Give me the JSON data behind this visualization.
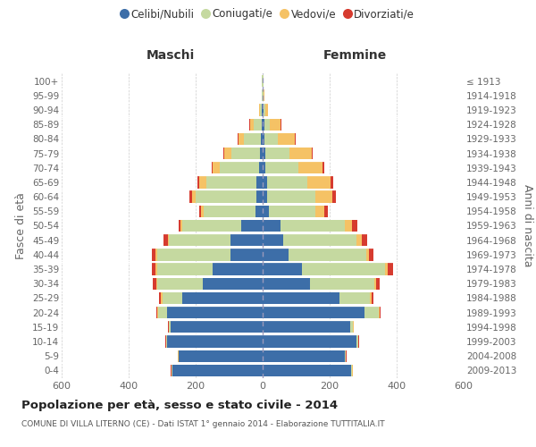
{
  "age_groups": [
    "100+",
    "95-99",
    "90-94",
    "85-89",
    "80-84",
    "75-79",
    "70-74",
    "65-69",
    "60-64",
    "55-59",
    "50-54",
    "45-49",
    "40-44",
    "35-39",
    "30-34",
    "25-29",
    "20-24",
    "15-19",
    "10-14",
    "5-9",
    "0-4"
  ],
  "birth_years": [
    "≤ 1913",
    "1914-1918",
    "1919-1923",
    "1924-1928",
    "1929-1933",
    "1934-1938",
    "1939-1943",
    "1944-1948",
    "1949-1953",
    "1954-1958",
    "1959-1963",
    "1964-1968",
    "1969-1973",
    "1974-1978",
    "1979-1983",
    "1984-1988",
    "1989-1993",
    "1994-1998",
    "1999-2003",
    "2004-2008",
    "2009-2013"
  ],
  "male_celibi": [
    1,
    1,
    3,
    4,
    5,
    8,
    12,
    18,
    20,
    22,
    65,
    95,
    95,
    150,
    180,
    240,
    285,
    275,
    285,
    250,
    270
  ],
  "male_coniugati": [
    1,
    1,
    4,
    22,
    50,
    85,
    115,
    150,
    180,
    155,
    175,
    185,
    220,
    165,
    135,
    60,
    28,
    5,
    3,
    2,
    2
  ],
  "male_vedovi": [
    0,
    0,
    3,
    12,
    18,
    22,
    22,
    22,
    12,
    6,
    5,
    4,
    4,
    4,
    3,
    3,
    3,
    1,
    1,
    1,
    1
  ],
  "male_divorziati": [
    0,
    0,
    0,
    1,
    2,
    2,
    3,
    5,
    6,
    6,
    6,
    12,
    12,
    12,
    9,
    6,
    2,
    1,
    1,
    1,
    1
  ],
  "female_nubili": [
    1,
    1,
    3,
    5,
    6,
    7,
    8,
    12,
    14,
    18,
    52,
    62,
    78,
    118,
    142,
    228,
    305,
    260,
    280,
    245,
    265
  ],
  "female_coniugate": [
    1,
    2,
    5,
    16,
    38,
    72,
    98,
    122,
    142,
    140,
    192,
    218,
    230,
    248,
    192,
    92,
    42,
    10,
    5,
    3,
    2
  ],
  "female_vedove": [
    0,
    2,
    8,
    32,
    52,
    68,
    72,
    68,
    52,
    26,
    22,
    16,
    9,
    6,
    4,
    4,
    2,
    1,
    1,
    1,
    1
  ],
  "female_divorziate": [
    0,
    0,
    0,
    2,
    2,
    3,
    6,
    9,
    11,
    11,
    16,
    16,
    13,
    16,
    11,
    6,
    2,
    1,
    1,
    1,
    1
  ],
  "color_celibi": "#3d6ea8",
  "color_coniugati": "#c5d9a0",
  "color_vedovi": "#f5c265",
  "color_divorziati": "#d63b2f",
  "title": "Popolazione per età, sesso e stato civile - 2014",
  "subtitle": "COMUNE DI VILLA LITERNO (CE) - Dati ISTAT 1° gennaio 2014 - Elaborazione TUTTITALIA.IT",
  "label_maschi": "Maschi",
  "label_femmine": "Femmine",
  "label_fasce": "Fasce di età",
  "label_anni": "Anni di nascita",
  "legend_labels": [
    "Celibi/Nubili",
    "Coniugati/e",
    "Vedovi/e",
    "Divorziati/e"
  ],
  "xlim": 600,
  "bg_color": "#ffffff",
  "grid_color": "#cccccc"
}
